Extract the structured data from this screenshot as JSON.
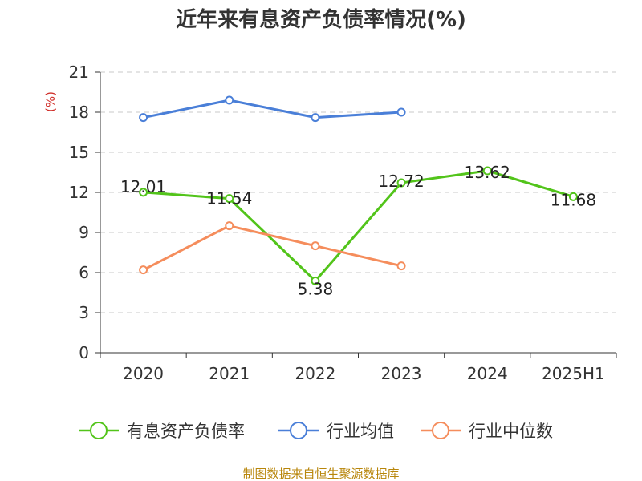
{
  "chart_data": {
    "type": "line",
    "title": "近年来有息资产负债率情况(%)",
    "ylabel": "(%)",
    "xlabel": "",
    "categories": [
      "2020",
      "2021",
      "2022",
      "2023",
      "2024",
      "2025H1"
    ],
    "ylim": [
      0,
      21
    ],
    "yticks": [
      0,
      3,
      6,
      9,
      12,
      15,
      18,
      21
    ],
    "grid": true,
    "legend_position": "bottom",
    "series": [
      {
        "name": "有息资产负债率",
        "color": "#52c41a",
        "values": [
          12.01,
          11.54,
          5.38,
          12.72,
          13.62,
          11.68
        ],
        "labels": [
          "12.01",
          "11.54",
          "5.38",
          "12.72",
          "13.62",
          "11.68"
        ]
      },
      {
        "name": "行业均值",
        "color": "#4a7fd8",
        "values": [
          17.6,
          18.9,
          17.6,
          18.0,
          null,
          null
        ]
      },
      {
        "name": "行业中位数",
        "color": "#f58d5c",
        "values": [
          6.2,
          9.5,
          8.0,
          6.5,
          null,
          null
        ]
      }
    ]
  },
  "source_text": "制图数据来自恒生聚源数据库"
}
